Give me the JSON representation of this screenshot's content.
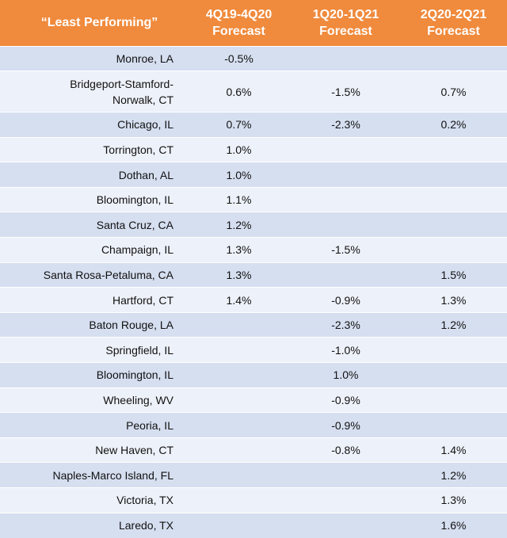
{
  "chart_data": {
    "type": "table",
    "title": "“Least Performing”",
    "columns": [
      {
        "line1": "4Q19-4Q20",
        "line2": "Forecast"
      },
      {
        "line1": "1Q20-1Q21",
        "line2": "Forecast"
      },
      {
        "line1": "2Q20-2Q21",
        "line2": "Forecast"
      }
    ],
    "rows": [
      {
        "market": "Monroe, LA",
        "values": [
          "-0.5%",
          "",
          ""
        ]
      },
      {
        "market": "Bridgeport-Stamford-Norwalk, CT",
        "market_line1": "Bridgeport-Stamford-",
        "market_line2": "Norwalk, CT",
        "values": [
          "0.6%",
          "-1.5%",
          "0.7%"
        ]
      },
      {
        "market": "Chicago, IL",
        "values": [
          "0.7%",
          "-2.3%",
          "0.2%"
        ]
      },
      {
        "market": "Torrington, CT",
        "values": [
          "1.0%",
          "",
          ""
        ]
      },
      {
        "market": "Dothan, AL",
        "values": [
          "1.0%",
          "",
          ""
        ]
      },
      {
        "market": "Bloomington, IL",
        "values": [
          "1.1%",
          "",
          ""
        ]
      },
      {
        "market": "Santa Cruz, CA",
        "values": [
          "1.2%",
          "",
          ""
        ]
      },
      {
        "market": "Champaign, IL",
        "values": [
          "1.3%",
          "-1.5%",
          ""
        ]
      },
      {
        "market": "Santa Rosa-Petaluma, CA",
        "values": [
          "1.3%",
          "",
          "1.5%"
        ]
      },
      {
        "market": "Hartford, CT",
        "values": [
          "1.4%",
          "-0.9%",
          "1.3%"
        ]
      },
      {
        "market": "Baton Rouge, LA",
        "values": [
          "",
          "-2.3%",
          "1.2%"
        ]
      },
      {
        "market": "Springfield, IL",
        "values": [
          "",
          "-1.0%",
          ""
        ]
      },
      {
        "market": "Bloomington, IL",
        "values": [
          "",
          "1.0%",
          ""
        ]
      },
      {
        "market": "Wheeling, WV",
        "values": [
          "",
          "-0.9%",
          ""
        ]
      },
      {
        "market": "Peoria, IL",
        "values": [
          "",
          "-0.9%",
          ""
        ]
      },
      {
        "market": "New Haven, CT",
        "values": [
          "",
          "-0.8%",
          "1.4%"
        ]
      },
      {
        "market": "Naples-Marco Island, FL",
        "values": [
          "",
          "",
          "1.2%"
        ]
      },
      {
        "market": "Victoria, TX",
        "values": [
          "",
          "",
          "1.3%"
        ]
      },
      {
        "market": "Laredo, TX",
        "values": [
          "",
          "",
          "1.6%"
        ]
      }
    ]
  },
  "colors": {
    "header_bg": "#f08a3c",
    "header_text": "#ffffff",
    "row_odd": "#d6dff0",
    "row_even": "#edf1f9"
  }
}
